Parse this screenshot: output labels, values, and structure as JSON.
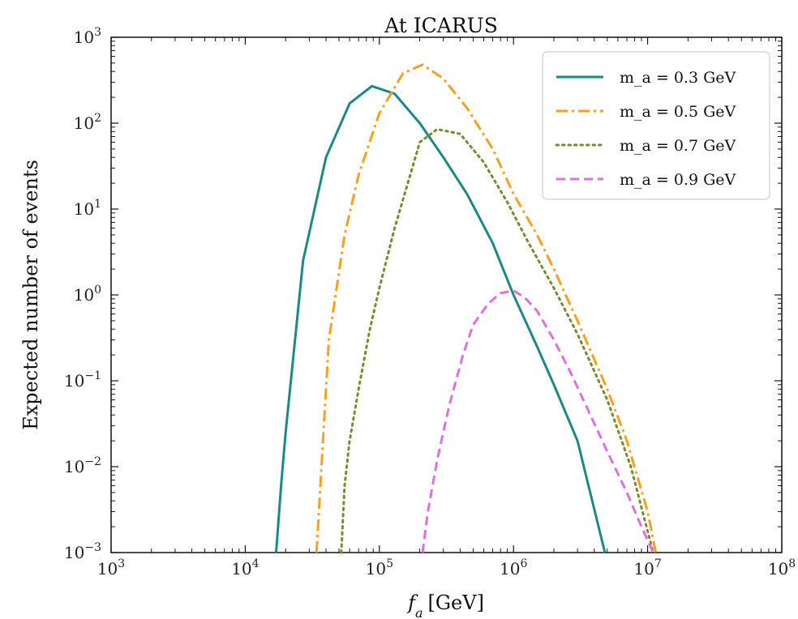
{
  "chart_data": {
    "type": "line",
    "title": "At ICARUS",
    "xlabel": "f_a [GeV]",
    "ylabel": "Expected number of events",
    "xscale": "log",
    "yscale": "log",
    "xlim": [
      1000,
      100000000
    ],
    "ylim": [
      0.001,
      1000
    ],
    "x_ticks": [
      "10^3",
      "10^4",
      "10^5",
      "10^6",
      "10^7",
      "10^8"
    ],
    "y_ticks": [
      "10^-3",
      "10^-2",
      "10^-1",
      "10^0",
      "10^1",
      "10^2",
      "10^3"
    ],
    "grid": false,
    "legend_position": "top-right",
    "series": [
      {
        "name": "m_a = 0.3 GeV",
        "color": "#1a8a87",
        "style": "solid",
        "x": [
          17000,
          18500,
          20000,
          27000,
          40000,
          60000,
          88000,
          130000,
          200000,
          300000,
          450000,
          700000,
          1000000,
          1500000,
          2000000,
          3000000,
          4800000
        ],
        "y": [
          0.001,
          0.006,
          0.025,
          2.5,
          40,
          170,
          270,
          220,
          100,
          40,
          15,
          4,
          1,
          0.25,
          0.09,
          0.02,
          0.001
        ]
      },
      {
        "name": "m_a = 0.5 GeV",
        "color": "#ff9e1b",
        "style": "dashdot",
        "x": [
          34000,
          37000,
          42000,
          55000,
          70000,
          100000,
          150000,
          210000,
          300000,
          450000,
          700000,
          1000000,
          1500000,
          2000000,
          3000000,
          5000000,
          7000000,
          10000000,
          11500000
        ],
        "y": [
          0.001,
          0.01,
          0.3,
          5,
          25,
          130,
          380,
          480,
          330,
          150,
          50,
          15,
          5,
          2,
          0.5,
          0.08,
          0.02,
          0.003,
          0.001
        ]
      },
      {
        "name": "m_a = 0.7 GeV",
        "color": "#7a8a2e",
        "style": "dotted",
        "x": [
          52000,
          55000,
          60000,
          70000,
          85000,
          100000,
          130000,
          170000,
          200000,
          270000,
          400000,
          600000,
          900000,
          1300000,
          2000000,
          3000000,
          5000000,
          7500000,
          11000000
        ],
        "y": [
          0.001,
          0.006,
          0.02,
          0.08,
          0.4,
          1.2,
          6,
          25,
          60,
          85,
          75,
          35,
          12,
          4,
          1.2,
          0.35,
          0.06,
          0.01,
          0.001
        ]
      },
      {
        "name": "m_a = 0.9 GeV",
        "color": "#e070e0",
        "style": "dashed",
        "x": [
          210000,
          230000,
          270000,
          330000,
          420000,
          500000,
          650000,
          800000,
          1000000,
          1200000,
          1500000,
          2000000,
          2700000,
          3500000,
          5000000,
          7000000,
          9000000,
          11000000
        ],
        "y": [
          0.001,
          0.003,
          0.012,
          0.05,
          0.2,
          0.45,
          0.8,
          1.05,
          1.12,
          0.95,
          0.65,
          0.3,
          0.12,
          0.05,
          0.015,
          0.005,
          0.002,
          0.001
        ]
      }
    ]
  }
}
